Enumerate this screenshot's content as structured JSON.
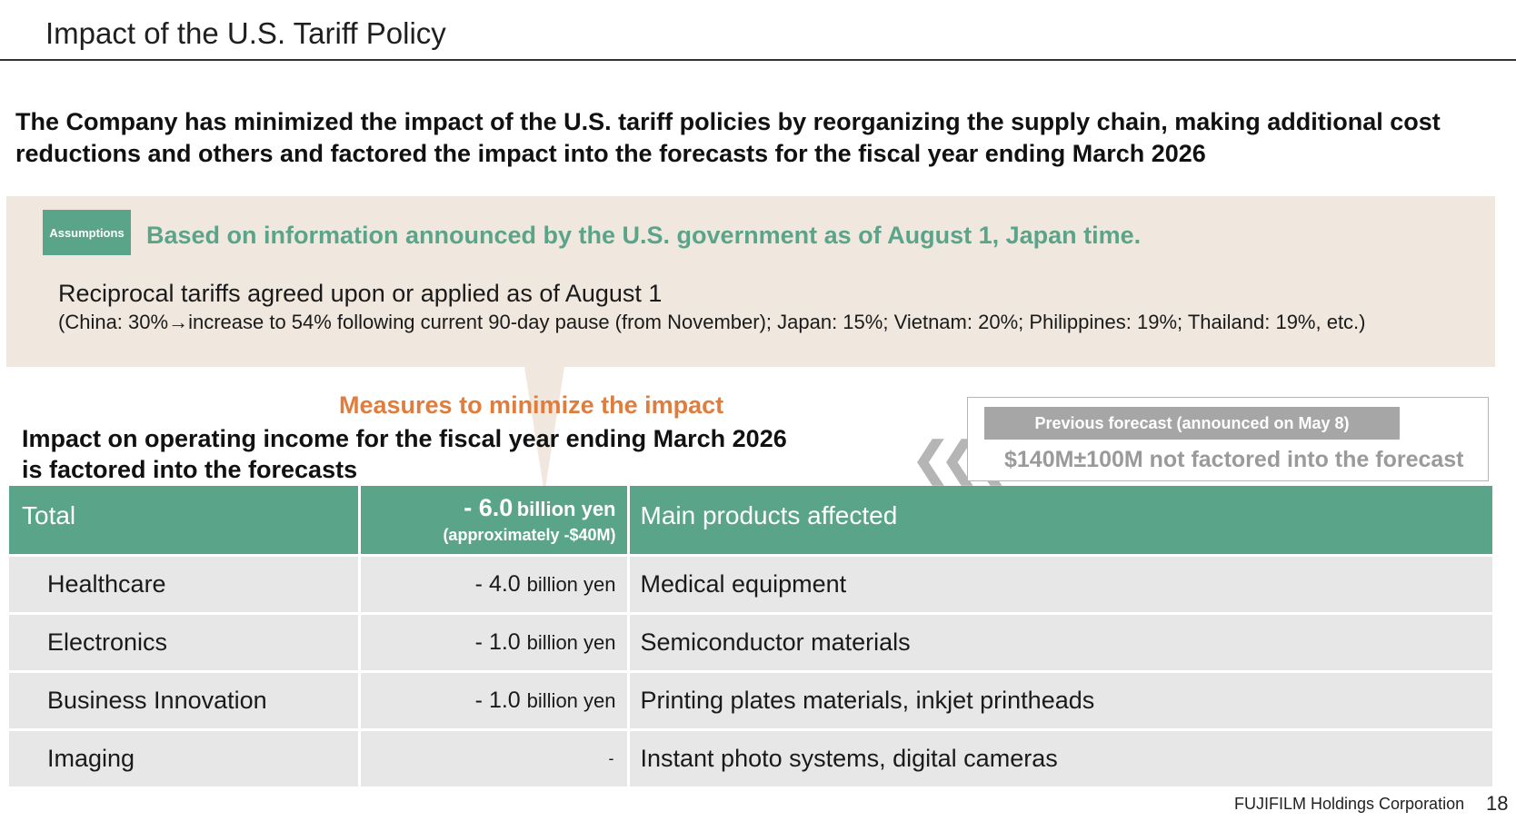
{
  "page_title": "Impact of the U.S. Tariff Policy",
  "lead_text": "The Company has minimized the impact of the U.S. tariff policies by reorganizing the supply chain, making additional cost reductions and others and factored the impact into the forecasts for the fiscal year ending March 2026",
  "assumptions": {
    "tag": "Assumptions",
    "headline": "Based on information announced by the U.S. government as of August 1, Japan time.",
    "tariffs_line": "Reciprocal tariffs agreed upon or applied as of August 1",
    "tariffs_detail": "(China: 30%→increase to 54% following current 90-day pause (from November); Japan: 15%; Vietnam: 20%; Philippines: 19%; Thailand: 19%, etc.)"
  },
  "measures_label": "Measures to minimize the impact",
  "impact_title_line1": "Impact on operating income for the fiscal year ending March 2026",
  "impact_title_line2": "is factored into the forecasts",
  "previous_forecast": {
    "tag": "Previous forecast (announced on May 8)",
    "text": "$140M±100M not factored into the forecast"
  },
  "table": {
    "header": {
      "label": "Total",
      "amount": "- 6.0",
      "unit": "billion yen",
      "sub": "(approximately -$40M)",
      "products": "Main products affected"
    },
    "rows": [
      {
        "segment": "Healthcare",
        "amount": "- 4.0",
        "unit": "billion yen",
        "products": "Medical equipment"
      },
      {
        "segment": "Electronics",
        "amount": "- 1.0",
        "unit": "billion yen",
        "products": "Semiconductor materials"
      },
      {
        "segment": "Business Innovation",
        "amount": "- 1.0",
        "unit": "billion yen",
        "products": "Printing plates materials, inkjet printheads"
      },
      {
        "segment": "Imaging",
        "amount": "-",
        "unit": "",
        "products": "Instant photo systems, digital cameras"
      }
    ]
  },
  "footer": {
    "company": "FUJIFILM Holdings Corporation",
    "page_number": "18"
  },
  "colors": {
    "accent_green": "#5aa58a",
    "accent_orange": "#e07d3c",
    "assumption_bg": "#f0e8df",
    "row_bg": "#e7e7e7",
    "muted_gray": "#a6a6a6"
  }
}
